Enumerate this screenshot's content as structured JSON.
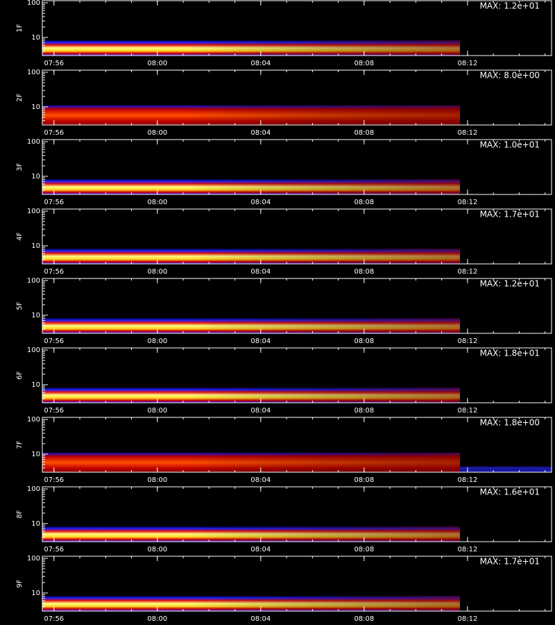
{
  "chart_data": [
    {
      "type": "heatmap",
      "ylabel": "1F",
      "annotation": "MAX: 1.2e+01",
      "log_y": true,
      "ylim": [
        3,
        115
      ],
      "yticks": [
        10,
        100
      ],
      "xlim": [
        475.55,
        495.25
      ],
      "xticks": [
        {
          "value": 476,
          "label": "07:56"
        },
        {
          "value": 480,
          "label": "08:00"
        },
        {
          "value": 484,
          "label": "08:04"
        },
        {
          "value": 488,
          "label": "08:08"
        },
        {
          "value": 492,
          "label": "08:12"
        }
      ]
    },
    {
      "type": "heatmap",
      "ylabel": "2F",
      "annotation": "MAX: 8.0e+00",
      "log_y": true,
      "ylim": [
        3,
        115
      ],
      "yticks": [
        10,
        100
      ],
      "xlim": [
        475.55,
        495.25
      ],
      "xticks": [
        {
          "value": 476,
          "label": "07:56"
        },
        {
          "value": 480,
          "label": "08:00"
        },
        {
          "value": 484,
          "label": "08:04"
        },
        {
          "value": 488,
          "label": "08:08"
        },
        {
          "value": 492,
          "label": "08:12"
        }
      ]
    },
    {
      "type": "heatmap",
      "ylabel": "3F",
      "annotation": "MAX: 1.0e+01",
      "log_y": true,
      "ylim": [
        3,
        115
      ],
      "yticks": [
        10,
        100
      ],
      "xlim": [
        475.55,
        495.25
      ],
      "xticks": [
        {
          "value": 476,
          "label": "07:56"
        },
        {
          "value": 480,
          "label": "08:00"
        },
        {
          "value": 484,
          "label": "08:04"
        },
        {
          "value": 488,
          "label": "08:08"
        },
        {
          "value": 492,
          "label": "08:12"
        }
      ]
    },
    {
      "type": "heatmap",
      "ylabel": "4F",
      "annotation": "MAX: 1.7e+01",
      "log_y": true,
      "ylim": [
        3,
        115
      ],
      "yticks": [
        10,
        100
      ],
      "xlim": [
        475.55,
        495.25
      ],
      "xticks": [
        {
          "value": 476,
          "label": "07:56"
        },
        {
          "value": 480,
          "label": "08:00"
        },
        {
          "value": 484,
          "label": "08:04"
        },
        {
          "value": 488,
          "label": "08:08"
        },
        {
          "value": 492,
          "label": "08:12"
        }
      ]
    },
    {
      "type": "heatmap",
      "ylabel": "5F",
      "annotation": "MAX: 1.2e+01",
      "log_y": true,
      "ylim": [
        3,
        115
      ],
      "yticks": [
        10,
        100
      ],
      "xlim": [
        475.55,
        495.25
      ],
      "xticks": [
        {
          "value": 476,
          "label": "07:56"
        },
        {
          "value": 480,
          "label": "08:00"
        },
        {
          "value": 484,
          "label": "08:04"
        },
        {
          "value": 488,
          "label": "08:08"
        },
        {
          "value": 492,
          "label": "08:12"
        }
      ]
    },
    {
      "type": "heatmap",
      "ylabel": "6F",
      "annotation": "MAX: 1.8e+01",
      "log_y": true,
      "ylim": [
        3,
        115
      ],
      "yticks": [
        10,
        100
      ],
      "xlim": [
        475.55,
        495.25
      ],
      "xticks": [
        {
          "value": 476,
          "label": "07:56"
        },
        {
          "value": 480,
          "label": "08:00"
        },
        {
          "value": 484,
          "label": "08:04"
        },
        {
          "value": 488,
          "label": "08:08"
        },
        {
          "value": 492,
          "label": "08:12"
        }
      ]
    },
    {
      "type": "heatmap",
      "ylabel": "7F",
      "annotation": "MAX: 1.8e+00",
      "log_y": true,
      "ylim": [
        3,
        115
      ],
      "yticks": [
        10,
        100
      ],
      "xlim": [
        475.55,
        495.25
      ],
      "xticks": [
        {
          "value": 476,
          "label": "07:56"
        },
        {
          "value": 480,
          "label": "08:00"
        },
        {
          "value": 484,
          "label": "08:04"
        },
        {
          "value": 488,
          "label": "08:08"
        },
        {
          "value": 492,
          "label": "08:12"
        }
      ]
    },
    {
      "type": "heatmap",
      "ylabel": "8F",
      "annotation": "MAX: 1.6e+01",
      "log_y": true,
      "ylim": [
        3,
        115
      ],
      "yticks": [
        10,
        100
      ],
      "xlim": [
        475.55,
        495.25
      ],
      "xticks": [
        {
          "value": 476,
          "label": "07:56"
        },
        {
          "value": 480,
          "label": "08:00"
        },
        {
          "value": 484,
          "label": "08:04"
        },
        {
          "value": 488,
          "label": "08:08"
        },
        {
          "value": 492,
          "label": "08:12"
        }
      ]
    },
    {
      "type": "heatmap",
      "ylabel": "9F",
      "annotation": "MAX: 1.7e+01",
      "log_y": true,
      "ylim": [
        3,
        115
      ],
      "yticks": [
        10,
        100
      ],
      "xlim": [
        475.55,
        495.25
      ],
      "xticks": [
        {
          "value": 476,
          "label": "07:56"
        },
        {
          "value": 480,
          "label": "08:00"
        },
        {
          "value": 484,
          "label": "08:04"
        },
        {
          "value": 488,
          "label": "08:08"
        },
        {
          "value": 492,
          "label": "08:12"
        }
      ]
    }
  ]
}
